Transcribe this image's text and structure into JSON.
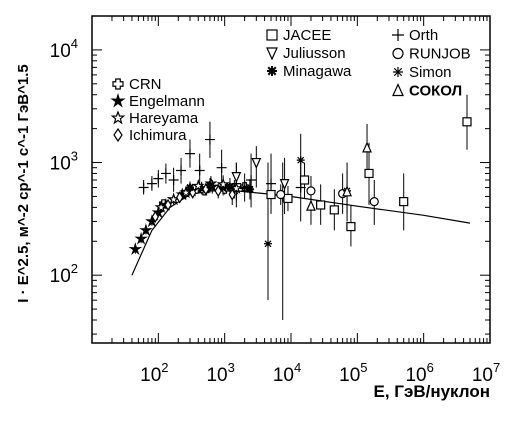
{
  "chart_data": {
    "type": "scatter",
    "title": "",
    "xlabel": "E, ГэВ/нуклон",
    "ylabel": "I · E^2.5, м^-2 ср^-1 с^-1 ГэВ^1.5",
    "xscale": "log",
    "yscale": "log",
    "xlim": [
      10,
      10000000
    ],
    "ylim": [
      25,
      20000
    ],
    "x_ticks": [
      {
        "value": 100,
        "base": "10",
        "exp": "2"
      },
      {
        "value": 1000,
        "base": "10",
        "exp": "3"
      },
      {
        "value": 10000,
        "base": "10",
        "exp": "4"
      },
      {
        "value": 100000,
        "base": "10",
        "exp": "5"
      },
      {
        "value": 1000000,
        "base": "10",
        "exp": "6"
      },
      {
        "value": 10000000,
        "base": "10",
        "exp": "7"
      }
    ],
    "y_ticks": [
      {
        "value": 100,
        "base": "10",
        "exp": "2"
      },
      {
        "value": 1000,
        "base": "10",
        "exp": "3"
      },
      {
        "value": 10000,
        "base": "10",
        "exp": "4"
      }
    ],
    "grid": false,
    "legend_placement": "top-left and top-right inside plot",
    "legend": {
      "left": [
        {
          "symbol": "open-cross",
          "name": "CRN"
        },
        {
          "symbol": "star-filled",
          "name": "Engelmann"
        },
        {
          "symbol": "star-open",
          "name": "Hareyama"
        },
        {
          "symbol": "diamond",
          "name": "Ichimura"
        }
      ],
      "right_col1": [
        {
          "symbol": "square",
          "name": "JACEE"
        },
        {
          "symbol": "triangle-down",
          "name": "Juliusson"
        },
        {
          "symbol": "asterisk-bold",
          "name": "Minagawa"
        }
      ],
      "right_col2": [
        {
          "symbol": "plus",
          "name": "Orth"
        },
        {
          "symbol": "circle",
          "name": "RUNJOB"
        },
        {
          "symbol": "asterisk",
          "name": "Simon"
        },
        {
          "symbol": "triangle-up",
          "name": "СОКОЛ"
        }
      ]
    },
    "fit_line": {
      "name": "",
      "points": [
        [
          40,
          100
        ],
        [
          80,
          250
        ],
        [
          150,
          400
        ],
        [
          300,
          520
        ],
        [
          600,
          560
        ],
        [
          1500,
          560
        ],
        [
          4000,
          530
        ],
        [
          10000,
          500
        ],
        [
          100000,
          410
        ],
        [
          1000000,
          340
        ],
        [
          5000000,
          290
        ]
      ]
    },
    "series": [
      {
        "name": "Orth",
        "symbol": "plus",
        "points": [
          {
            "x": 60,
            "y": 600,
            "lo": 520,
            "hi": 700
          },
          {
            "x": 80,
            "y": 650,
            "lo": 560,
            "hi": 760
          },
          {
            "x": 100,
            "y": 720,
            "lo": 600,
            "hi": 860
          },
          {
            "x": 130,
            "y": 800,
            "lo": 650,
            "hi": 980
          },
          {
            "x": 170,
            "y": 700,
            "lo": 550,
            "hi": 900
          },
          {
            "x": 220,
            "y": 850,
            "lo": 650,
            "hi": 1100
          },
          {
            "x": 300,
            "y": 1200,
            "lo": 900,
            "hi": 1600
          },
          {
            "x": 420,
            "y": 850,
            "lo": 600,
            "hi": 1200
          },
          {
            "x": 600,
            "y": 1600,
            "lo": 1100,
            "hi": 2300
          },
          {
            "x": 900,
            "y": 900,
            "lo": 600,
            "hi": 1300
          },
          {
            "x": 1500,
            "y": 650,
            "lo": 400,
            "hi": 1000
          },
          {
            "x": 2500,
            "y": 700,
            "lo": 400,
            "hi": 1200
          },
          {
            "x": 5000,
            "y": 650,
            "lo": 350,
            "hi": 1200
          },
          {
            "x": 7500,
            "y": 500,
            "lo": 40,
            "hi": 1000
          },
          {
            "x": 14000,
            "y": 600,
            "lo": 300,
            "hi": 1100
          }
        ]
      },
      {
        "name": "CRN",
        "symbol": "open-cross",
        "points": [
          {
            "x": 120,
            "y": 430,
            "lo": 400,
            "hi": 460
          },
          {
            "x": 240,
            "y": 520,
            "lo": 480,
            "hi": 560
          },
          {
            "x": 500,
            "y": 560,
            "lo": 510,
            "hi": 620
          },
          {
            "x": 1000,
            "y": 580,
            "lo": 520,
            "hi": 650
          },
          {
            "x": 2000,
            "y": 610,
            "lo": 540,
            "hi": 690
          }
        ]
      },
      {
        "name": "Engelmann",
        "symbol": "star-filled",
        "points": [
          {
            "x": 45,
            "y": 170,
            "lo": 155,
            "hi": 185
          },
          {
            "x": 55,
            "y": 210,
            "lo": 192,
            "hi": 230
          },
          {
            "x": 65,
            "y": 250,
            "lo": 230,
            "hi": 272
          },
          {
            "x": 80,
            "y": 300,
            "lo": 275,
            "hi": 330
          },
          {
            "x": 100,
            "y": 360,
            "lo": 330,
            "hi": 395
          },
          {
            "x": 130,
            "y": 420,
            "lo": 385,
            "hi": 460
          },
          {
            "x": 170,
            "y": 470,
            "lo": 430,
            "hi": 515
          },
          {
            "x": 230,
            "y": 520,
            "lo": 470,
            "hi": 575
          },
          {
            "x": 320,
            "y": 560,
            "lo": 500,
            "hi": 630
          },
          {
            "x": 450,
            "y": 590,
            "lo": 520,
            "hi": 670
          },
          {
            "x": 650,
            "y": 610,
            "lo": 530,
            "hi": 700
          },
          {
            "x": 950,
            "y": 600,
            "lo": 510,
            "hi": 710
          },
          {
            "x": 1400,
            "y": 580,
            "lo": 480,
            "hi": 700
          }
        ]
      },
      {
        "name": "Hareyama",
        "symbol": "star-open",
        "points": [
          {
            "x": 110,
            "y": 400,
            "lo": 360,
            "hi": 440
          },
          {
            "x": 170,
            "y": 470,
            "lo": 420,
            "hi": 520
          },
          {
            "x": 260,
            "y": 540,
            "lo": 480,
            "hi": 610
          },
          {
            "x": 400,
            "y": 620,
            "lo": 540,
            "hi": 700
          },
          {
            "x": 620,
            "y": 650,
            "lo": 560,
            "hi": 760
          },
          {
            "x": 950,
            "y": 640,
            "lo": 530,
            "hi": 770
          },
          {
            "x": 1500,
            "y": 590,
            "lo": 460,
            "hi": 750
          }
        ]
      },
      {
        "name": "Ichimura",
        "symbol": "diamond",
        "points": [
          {
            "x": 90,
            "y": 330,
            "lo": 300,
            "hi": 360
          },
          {
            "x": 140,
            "y": 420,
            "lo": 380,
            "hi": 460
          },
          {
            "x": 210,
            "y": 490,
            "lo": 440,
            "hi": 540
          },
          {
            "x": 330,
            "y": 540,
            "lo": 480,
            "hi": 600
          },
          {
            "x": 520,
            "y": 580,
            "lo": 510,
            "hi": 660
          },
          {
            "x": 800,
            "y": 560,
            "lo": 480,
            "hi": 650
          },
          {
            "x": 1300,
            "y": 520,
            "lo": 420,
            "hi": 640
          }
        ]
      },
      {
        "name": "JACEE",
        "symbol": "square",
        "points": [
          {
            "x": 5000,
            "y": 520,
            "lo": 420,
            "hi": 640
          },
          {
            "x": 9000,
            "y": 480,
            "lo": 370,
            "hi": 620
          },
          {
            "x": 16000,
            "y": 700,
            "lo": 480,
            "hi": 1000
          },
          {
            "x": 28000,
            "y": 420,
            "lo": 280,
            "hi": 640
          },
          {
            "x": 45000,
            "y": 380,
            "lo": 250,
            "hi": 580
          },
          {
            "x": 80000,
            "y": 270,
            "lo": 180,
            "hi": 420
          },
          {
            "x": 150000,
            "y": 800,
            "lo": 420,
            "hi": 1500
          },
          {
            "x": 500000,
            "y": 450,
            "lo": 250,
            "hi": 800
          },
          {
            "x": 4500000,
            "y": 2300,
            "lo": 1300,
            "hi": 4000
          }
        ]
      },
      {
        "name": "Juliusson",
        "symbol": "triangle-down",
        "points": [
          {
            "x": 1500,
            "y": 750,
            "lo": 550,
            "hi": 1000
          },
          {
            "x": 3000,
            "y": 1000,
            "lo": 600,
            "hi": 1400
          },
          {
            "x": 8000,
            "y": 650,
            "lo": 350,
            "hi": 1100
          }
        ]
      },
      {
        "name": "Minagawa",
        "symbol": "asterisk-bold",
        "points": [
          {
            "x": 300,
            "y": 600,
            "lo": 520,
            "hi": 680
          },
          {
            "x": 600,
            "y": 630,
            "lo": 540,
            "hi": 730
          },
          {
            "x": 1200,
            "y": 610,
            "lo": 510,
            "hi": 730
          },
          {
            "x": 2400,
            "y": 580,
            "lo": 470,
            "hi": 710
          }
        ]
      },
      {
        "name": "RUNJOB",
        "symbol": "circle",
        "points": [
          {
            "x": 7000,
            "y": 520,
            "lo": 420,
            "hi": 640
          },
          {
            "x": 20000,
            "y": 560,
            "lo": 400,
            "hi": 760
          },
          {
            "x": 60000,
            "y": 530,
            "lo": 350,
            "hi": 800
          },
          {
            "x": 180000,
            "y": 450,
            "lo": 280,
            "hi": 700
          }
        ]
      },
      {
        "name": "Simon",
        "symbol": "asterisk",
        "points": [
          {
            "x": 2000,
            "y": 600,
            "lo": 450,
            "hi": 800
          },
          {
            "x": 4500,
            "y": 190,
            "lo": 60,
            "hi": 1000
          },
          {
            "x": 14000,
            "y": 1050,
            "lo": 600,
            "hi": 1800
          },
          {
            "x": 70000,
            "y": 560,
            "lo": 300,
            "hi": 1000
          }
        ]
      },
      {
        "name": "СОКОЛ",
        "symbol": "triangle-up",
        "points": [
          {
            "x": 20000,
            "y": 410,
            "lo": 280,
            "hi": 600
          },
          {
            "x": 70000,
            "y": 550,
            "lo": 350,
            "hi": 850
          },
          {
            "x": 140000,
            "y": 1350,
            "lo": 800,
            "hi": 2200
          }
        ]
      }
    ]
  }
}
